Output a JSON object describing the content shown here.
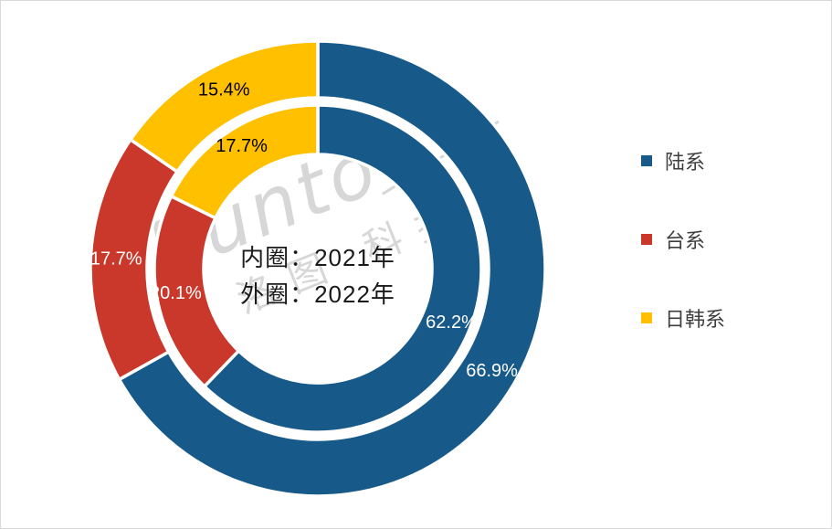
{
  "watermark": {
    "brand": "Runto",
    "company": "洛图 科技"
  },
  "chart_data": {
    "type": "donut",
    "variant": "nested-two-ring",
    "categories": [
      "陆系",
      "台系",
      "日韩系"
    ],
    "colors": [
      "#175A8A",
      "#C9382A",
      "#FFC000"
    ],
    "slice_label_colors": [
      "#FFFFFF",
      "#FFFFFF",
      "#000000"
    ],
    "rings": [
      {
        "name": "内圈",
        "year": "2021年",
        "position": "inner",
        "values": [
          62.2,
          20.1,
          17.7
        ],
        "labels": [
          "62.2%",
          "20.1%",
          "17.7%"
        ]
      },
      {
        "name": "外圈",
        "year": "2022年",
        "position": "outer",
        "values": [
          66.9,
          17.7,
          15.4
        ],
        "labels": [
          "66.9%",
          "17.7%",
          "15.4%"
        ]
      }
    ],
    "start_angle_deg": 0,
    "direction": "clockwise",
    "center_text": [
      "内圈：2021年",
      "外圈：2022年"
    ],
    "legend": {
      "position": "right",
      "items": [
        {
          "label": "陆系",
          "color": "#175A8A"
        },
        {
          "label": "台系",
          "color": "#C9382A"
        },
        {
          "label": "日韩系",
          "color": "#FFC000"
        }
      ]
    }
  }
}
